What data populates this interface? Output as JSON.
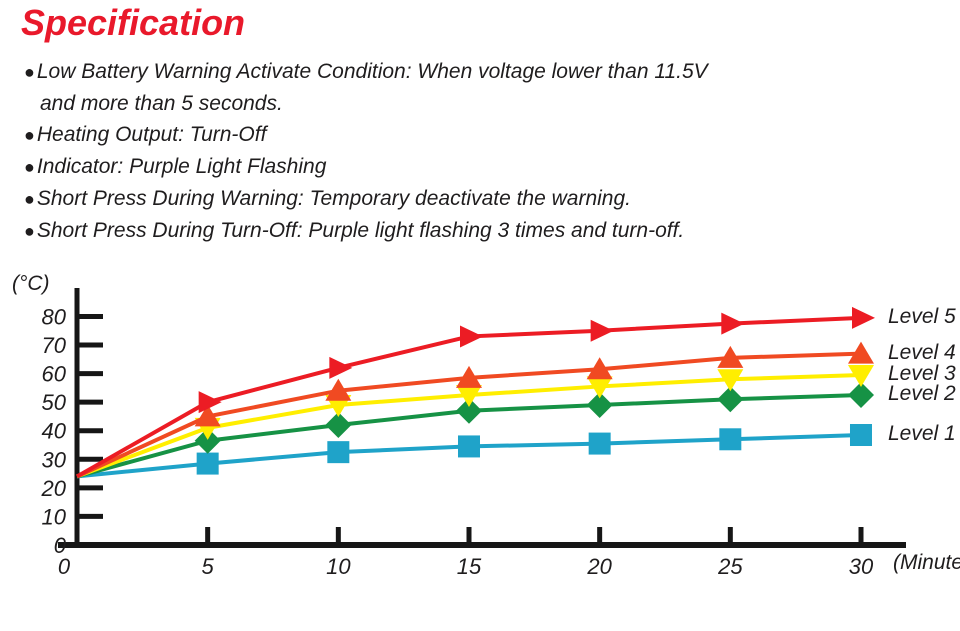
{
  "title": "Specification",
  "title_color": "#e9192b",
  "spec_bullets": [
    {
      "line1": "Low Battery Warning Activate Condition: When voltage lower than 11.5V",
      "line2": "and more than 5 seconds."
    },
    {
      "line1": "Heating Output: Turn-Off"
    },
    {
      "line1": "Indicator: Purple Light Flashing"
    },
    {
      "line1": "Short Press During Warning: Temporary deactivate the warning."
    },
    {
      "line1": "Short Press During Turn-Off: Purple light flashing 3 times and turn-off."
    }
  ],
  "chart_data": {
    "type": "line",
    "title": "",
    "xlabel": "(Minutes)",
    "ylabel": "(°C)",
    "x": [
      0,
      5,
      10,
      15,
      20,
      25,
      30
    ],
    "x_ticks": [
      0,
      5,
      10,
      15,
      20,
      25,
      30
    ],
    "y_ticks": [
      0,
      10,
      20,
      30,
      40,
      50,
      60,
      70,
      80
    ],
    "ylim": [
      0,
      85
    ],
    "xlim": [
      0,
      32
    ],
    "grid": false,
    "legend_position": "right",
    "axis_color": "#161616",
    "series": [
      {
        "name": "Level 1",
        "color": "#1fa3c9",
        "marker": "square",
        "values": [
          24,
          28.5,
          32.5,
          34.5,
          35.5,
          37,
          38.5
        ]
      },
      {
        "name": "Level 2",
        "color": "#169245",
        "marker": "diamond",
        "values": [
          24,
          36.5,
          42,
          47,
          49,
          51,
          52.5
        ]
      },
      {
        "name": "Level 3",
        "color": "#ffee00",
        "marker": "triangle-down",
        "values": [
          24,
          41,
          49,
          52.5,
          55.5,
          58,
          59.5
        ]
      },
      {
        "name": "Level 4",
        "color": "#f04a22",
        "marker": "triangle-up",
        "values": [
          24,
          45,
          54,
          58.5,
          61.5,
          65.5,
          67
        ]
      },
      {
        "name": "Level 5",
        "color": "#ec1c24",
        "marker": "triangle-right",
        "values": [
          24,
          50,
          62,
          73,
          75,
          77.5,
          79.5
        ]
      }
    ]
  }
}
